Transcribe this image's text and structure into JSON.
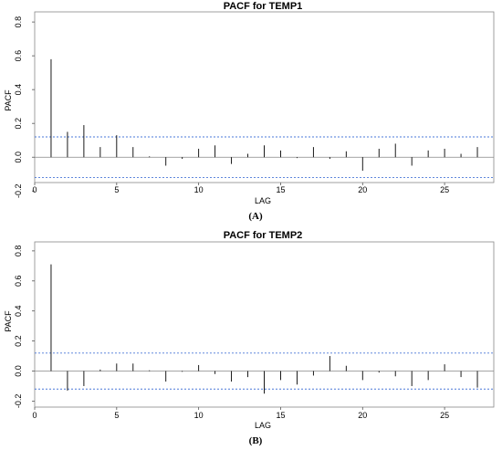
{
  "chart_data": [
    {
      "type": "bar",
      "title": "PACF for TEMP1",
      "xlabel": "LAG",
      "ylabel": "PACF",
      "caption": "(A)",
      "xlim": [
        0,
        28
      ],
      "ylim": [
        -0.15,
        0.86
      ],
      "x_ticks": [
        "0",
        "5",
        "10",
        "15",
        "20",
        "25"
      ],
      "y_ticks": [
        "0.8",
        "0.6",
        "0.4",
        "0.2",
        "0.0",
        "-0.2"
      ],
      "y_tick_values": [
        0.8,
        0.6,
        0.4,
        0.2,
        0.0,
        -0.2
      ],
      "confidence_limits": [
        0.12,
        -0.12
      ],
      "lags": [
        1,
        2,
        3,
        4,
        5,
        6,
        7,
        8,
        9,
        10,
        11,
        12,
        13,
        14,
        15,
        16,
        17,
        18,
        19,
        20,
        21,
        22,
        23,
        24,
        25,
        26,
        27
      ],
      "values": [
        0.58,
        0.15,
        0.19,
        0.06,
        0.13,
        0.06,
        0.005,
        -0.05,
        -0.01,
        0.05,
        0.07,
        -0.04,
        0.02,
        0.07,
        0.04,
        -0.005,
        0.06,
        -0.01,
        0.035,
        -0.08,
        0.05,
        0.08,
        -0.05,
        0.04,
        0.05,
        0.02,
        0.06
      ],
      "line_color": "#000000",
      "limit_color": "#4a78d8"
    },
    {
      "type": "bar",
      "title": "PACF for TEMP2",
      "xlabel": "LAG",
      "ylabel": "PACF",
      "caption": "(B)",
      "xlim": [
        0,
        28
      ],
      "ylim": [
        -0.24,
        0.86
      ],
      "x_ticks": [
        "0",
        "5",
        "10",
        "15",
        "20",
        "25"
      ],
      "y_ticks": [
        "0.8",
        "0.6",
        "0.4",
        "0.2",
        "0.0",
        "-0.2"
      ],
      "y_tick_values": [
        0.8,
        0.6,
        0.4,
        0.2,
        0.0,
        -0.2
      ],
      "confidence_limits": [
        0.12,
        -0.12
      ],
      "lags": [
        1,
        2,
        3,
        4,
        5,
        6,
        7,
        8,
        9,
        10,
        11,
        12,
        13,
        14,
        15,
        16,
        17,
        18,
        19,
        20,
        21,
        22,
        23,
        24,
        25,
        26,
        27
      ],
      "values": [
        0.71,
        -0.13,
        -0.1,
        0.01,
        0.05,
        0.05,
        0.005,
        -0.07,
        -0.005,
        0.04,
        -0.02,
        -0.07,
        -0.04,
        -0.15,
        -0.06,
        -0.09,
        -0.03,
        0.1,
        0.035,
        -0.06,
        -0.01,
        -0.035,
        -0.1,
        -0.06,
        0.045,
        -0.04,
        -0.11
      ],
      "line_color": "#000000",
      "limit_color": "#4a78d8"
    }
  ]
}
